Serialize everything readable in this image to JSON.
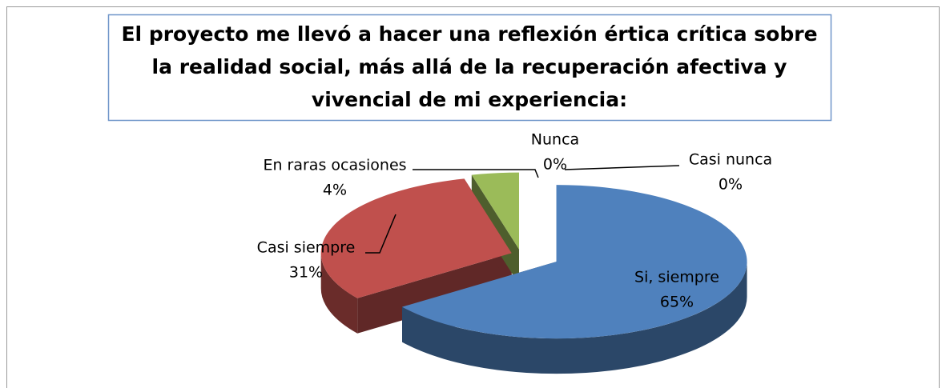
{
  "chart_data": {
    "type": "pie",
    "title": "El proyecto me llevó a hacer una reflexión értica crítica sobre la realidad social, más allá de la recuperación afectiva y vivencial de mi experiencia:",
    "categories": [
      "Si, siempre",
      "Casi siempre",
      "En raras ocasiones",
      "Nunca",
      "Casi nunca"
    ],
    "values": [
      65,
      31,
      4,
      0,
      0
    ],
    "value_labels": [
      "65%",
      "31%",
      "4%",
      "0%",
      "0%"
    ],
    "colors": [
      "#4f81bd",
      "#c0504d",
      "#9bbb59",
      "#8064a2",
      "#4bacc6"
    ]
  }
}
